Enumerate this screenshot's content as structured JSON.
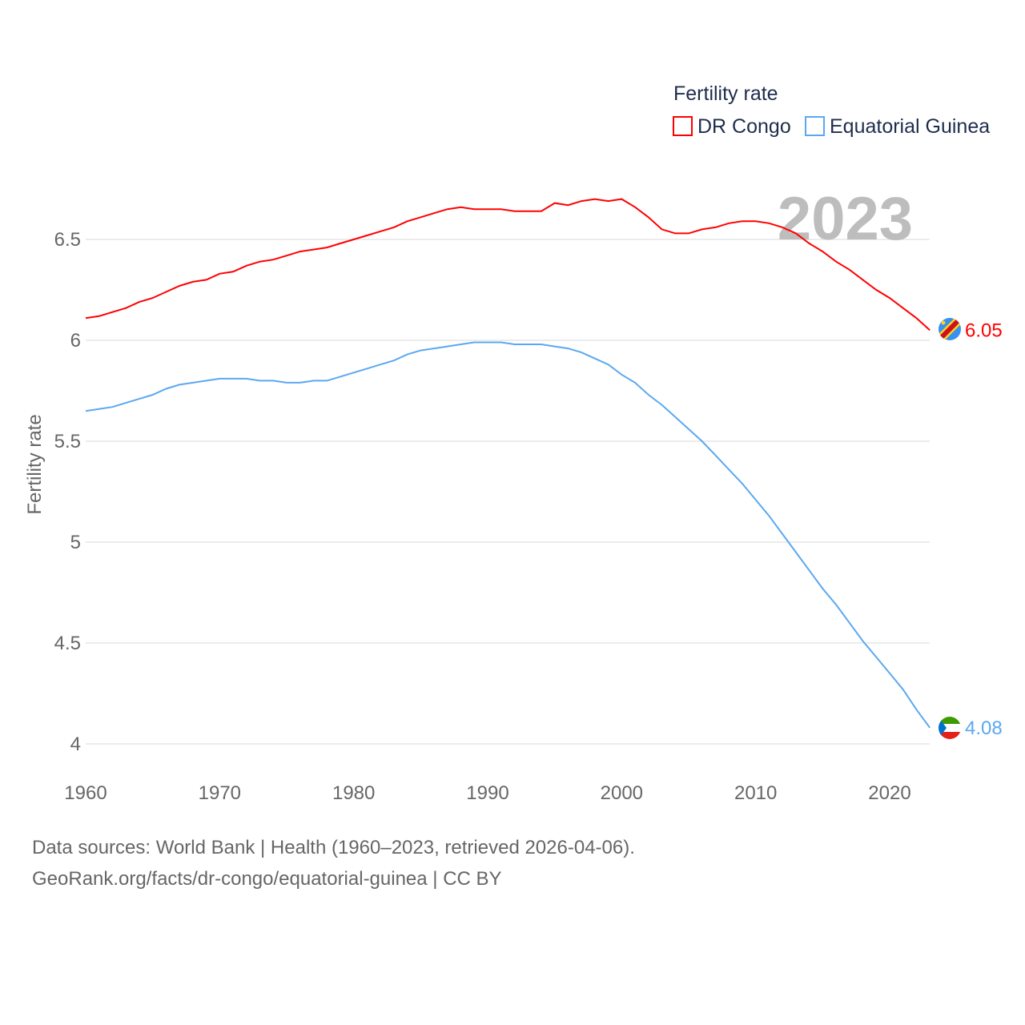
{
  "chart_data": {
    "type": "line",
    "title": "Fertility rate",
    "ylabel": "Fertility rate",
    "xlabel": "",
    "xlim": [
      1960,
      2023
    ],
    "ylim": [
      4,
      6.75
    ],
    "x_ticks": [
      "1960",
      "1970",
      "1980",
      "1990",
      "2000",
      "2010",
      "2020"
    ],
    "y_ticks": [
      "4",
      "4.5",
      "5",
      "5.5",
      "6",
      "6.5"
    ],
    "grid": true,
    "legend_placement": "top-right",
    "year_label": "2023",
    "x": [
      1960,
      1961,
      1962,
      1963,
      1964,
      1965,
      1966,
      1967,
      1968,
      1969,
      1970,
      1971,
      1972,
      1973,
      1974,
      1975,
      1976,
      1977,
      1978,
      1979,
      1980,
      1981,
      1982,
      1983,
      1984,
      1985,
      1986,
      1987,
      1988,
      1989,
      1990,
      1991,
      1992,
      1993,
      1994,
      1995,
      1996,
      1997,
      1998,
      1999,
      2000,
      2001,
      2002,
      2003,
      2004,
      2005,
      2006,
      2007,
      2008,
      2009,
      2010,
      2011,
      2012,
      2013,
      2014,
      2015,
      2016,
      2017,
      2018,
      2019,
      2020,
      2021,
      2022,
      2023
    ],
    "series": [
      {
        "name": "DR Congo",
        "color": "#ff0000",
        "end_label": "6.05",
        "values": [
          6.11,
          6.12,
          6.14,
          6.16,
          6.19,
          6.21,
          6.24,
          6.27,
          6.29,
          6.3,
          6.33,
          6.34,
          6.37,
          6.39,
          6.4,
          6.42,
          6.44,
          6.45,
          6.46,
          6.48,
          6.5,
          6.52,
          6.54,
          6.56,
          6.59,
          6.61,
          6.63,
          6.65,
          6.66,
          6.65,
          6.65,
          6.65,
          6.64,
          6.64,
          6.64,
          6.68,
          6.67,
          6.69,
          6.7,
          6.69,
          6.7,
          6.66,
          6.61,
          6.55,
          6.53,
          6.53,
          6.55,
          6.56,
          6.58,
          6.59,
          6.59,
          6.58,
          6.56,
          6.53,
          6.48,
          6.44,
          6.39,
          6.35,
          6.3,
          6.25,
          6.21,
          6.16,
          6.11,
          6.05
        ]
      },
      {
        "name": "Equatorial Guinea",
        "color": "#5ba8f0",
        "end_label": "4.08",
        "values": [
          5.65,
          5.66,
          5.67,
          5.69,
          5.71,
          5.73,
          5.76,
          5.78,
          5.79,
          5.8,
          5.81,
          5.81,
          5.81,
          5.8,
          5.8,
          5.79,
          5.79,
          5.8,
          5.8,
          5.82,
          5.84,
          5.86,
          5.88,
          5.9,
          5.93,
          5.95,
          5.96,
          5.97,
          5.98,
          5.99,
          5.99,
          5.99,
          5.98,
          5.98,
          5.98,
          5.97,
          5.96,
          5.94,
          5.91,
          5.88,
          5.83,
          5.79,
          5.73,
          5.68,
          5.62,
          5.56,
          5.5,
          5.43,
          5.36,
          5.29,
          5.21,
          5.13,
          5.04,
          4.95,
          4.86,
          4.77,
          4.69,
          4.6,
          4.51,
          4.43,
          4.35,
          4.27,
          4.17,
          4.08
        ]
      }
    ]
  },
  "footer": {
    "line1": "Data sources: World Bank | Health (1960–2023, retrieved 2026-04-06).",
    "line2": "GeoRank.org/facts/dr-congo/equatorial-guinea | CC BY"
  }
}
